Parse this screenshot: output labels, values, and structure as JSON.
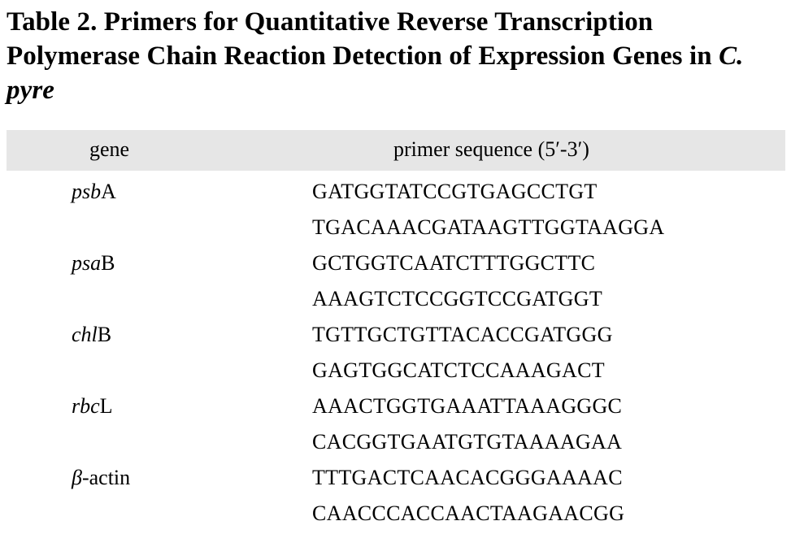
{
  "caption": {
    "title_prefix": "Table 2. Primers for Quantitative Reverse Transcription Polymerase Chain Reaction Detection of Expression Genes in ",
    "species": "C. pyre"
  },
  "table": {
    "headers": {
      "gene": "gene",
      "primer_sequence": "primer sequence (5′-3′)"
    },
    "rows": [
      {
        "gene_italic": "psb",
        "gene_plain": "A",
        "sequence": "GATGGTATCCGTGAGCCTGT"
      },
      {
        "gene_italic": "",
        "gene_plain": "",
        "sequence": "TGACAAACGATAAGTTGGTAAGGA"
      },
      {
        "gene_italic": "psa",
        "gene_plain": "B",
        "sequence": "GCTGGTCAATCTTTGGCTTC"
      },
      {
        "gene_italic": "",
        "gene_plain": "",
        "sequence": "AAAGTCTCCGGTCCGATGGT"
      },
      {
        "gene_italic": "chl",
        "gene_plain": "B",
        "sequence": "TGTTGCTGTTACACCGATGGG"
      },
      {
        "gene_italic": "",
        "gene_plain": "",
        "sequence": "GAGTGGCATCTCCAAAGACT"
      },
      {
        "gene_italic": "rbc",
        "gene_plain": "L",
        "sequence": "AAACTGGTGAAATTAAAGGGC"
      },
      {
        "gene_italic": "",
        "gene_plain": "",
        "sequence": "CACGGTGAATGTGTAAAAGAA"
      },
      {
        "gene_italic": "β",
        "gene_plain": "-actin",
        "sequence": "TTTGACTCAACACGGGAAAAC"
      },
      {
        "gene_italic": "",
        "gene_plain": "",
        "sequence": "CAACCCACCAACTAAGAACGG"
      }
    ]
  }
}
